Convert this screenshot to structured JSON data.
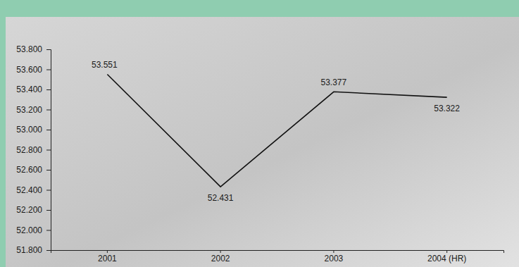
{
  "chart_data": {
    "type": "line",
    "categories": [
      "2001",
      "2002",
      "2003",
      "2004 (HR)"
    ],
    "values": [
      53.551,
      52.431,
      53.377,
      53.322
    ],
    "color": "#111111",
    "ylim": [
      51.8,
      53.8
    ],
    "yticks": [
      {
        "value": 51.8,
        "label": "51.800"
      },
      {
        "value": 52.0,
        "label": "52.000"
      },
      {
        "value": 52.2,
        "label": "52.200"
      },
      {
        "value": 52.4,
        "label": "52.400"
      },
      {
        "value": 52.6,
        "label": "52.600"
      },
      {
        "value": 52.8,
        "label": "52.800"
      },
      {
        "value": 53.0,
        "label": "53.000"
      },
      {
        "value": 53.2,
        "label": "53.200"
      },
      {
        "value": 53.4,
        "label": "53.400"
      },
      {
        "value": 53.6,
        "label": "53.600"
      },
      {
        "value": 53.8,
        "label": "53.800"
      }
    ],
    "data_labels": true,
    "grid": false
  }
}
